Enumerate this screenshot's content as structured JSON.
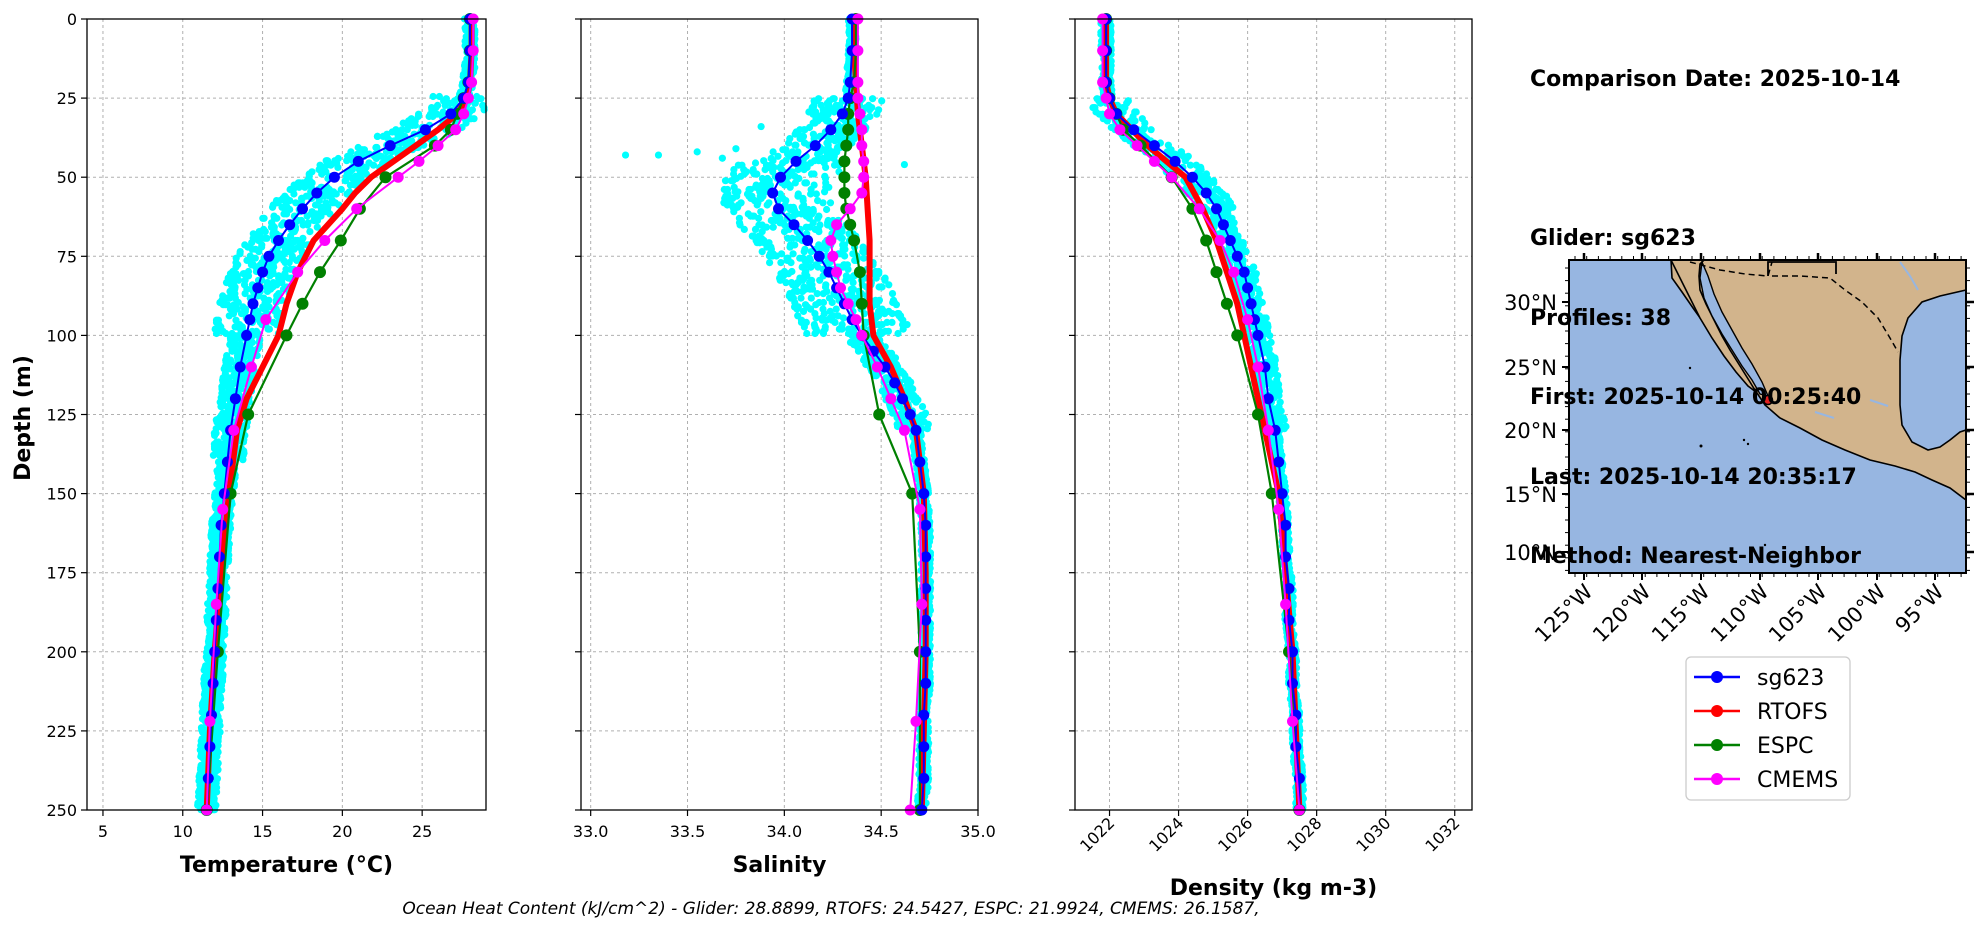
{
  "info": {
    "comparison_date": "Comparison Date: 2025-10-14",
    "glider": "Glider: sg623",
    "profiles": "Profiles: 38",
    "first": "First: 2025-10-14 00:25:40",
    "last": "Last: 2025-10-14 20:35:17",
    "method": "Method: Nearest-Neighbor"
  },
  "footer": "Ocean Heat Content (kJ/cm^2) - Glider: 28.8899,  RTOFS: 24.5427,  ESPC: 21.9924,  CMEMS: 26.1587,",
  "colors": {
    "sg623": "#0000ff",
    "RTOFS": "#ff0000",
    "ESPC": "#008000",
    "CMEMS": "#ff00ff",
    "glider_points": "#00ffff",
    "ocean": "#97b6e1",
    "land": "#d2b48c"
  },
  "chart_data": [
    {
      "type": "line",
      "xlabel": "Temperature (°C)",
      "ylabel": "Depth (m)",
      "xlim": [
        4,
        29
      ],
      "ylim": [
        250,
        0
      ],
      "xticks": [
        "5",
        "10",
        "15",
        "20",
        "25"
      ],
      "yticks": [
        "0",
        "25",
        "50",
        "75",
        "100",
        "125",
        "150",
        "175",
        "200",
        "225",
        "250"
      ],
      "grid": true,
      "series": [
        {
          "name": "sg623",
          "depth": [
            0,
            10,
            20,
            25,
            30,
            35,
            40,
            45,
            50,
            55,
            60,
            65,
            70,
            75,
            80,
            85,
            90,
            95,
            100,
            110,
            120,
            130,
            140,
            150,
            160,
            170,
            180,
            190,
            200,
            210,
            220,
            230,
            240,
            250
          ],
          "values": [
            28.0,
            28.0,
            27.9,
            27.6,
            26.8,
            25.2,
            23.0,
            21.0,
            19.5,
            18.4,
            17.5,
            16.7,
            16.0,
            15.4,
            15.0,
            14.7,
            14.4,
            14.2,
            14.0,
            13.6,
            13.3,
            13.0,
            12.8,
            12.6,
            12.4,
            12.3,
            12.2,
            12.1,
            12.0,
            11.9,
            11.8,
            11.7,
            11.6,
            11.5
          ]
        },
        {
          "name": "RTOFS",
          "depth": [
            0,
            10,
            20,
            25,
            30,
            35,
            40,
            45,
            50,
            55,
            60,
            65,
            70,
            80,
            90,
            100,
            110,
            120,
            130,
            150,
            175,
            200,
            225,
            250
          ],
          "values": [
            28.1,
            28.1,
            28.0,
            27.8,
            27.2,
            26.0,
            24.6,
            23.2,
            21.8,
            20.8,
            20.0,
            19.1,
            18.2,
            17.2,
            16.5,
            16.0,
            15.0,
            14.0,
            13.4,
            12.9,
            12.4,
            12.0,
            11.7,
            11.5
          ]
        },
        {
          "name": "ESPC",
          "depth": [
            0,
            10,
            20,
            25,
            30,
            35,
            40,
            50,
            60,
            70,
            80,
            90,
            100,
            125,
            150,
            200,
            250
          ],
          "values": [
            28.0,
            28.0,
            27.9,
            27.6,
            27.2,
            26.8,
            25.8,
            22.7,
            21.1,
            19.9,
            18.6,
            17.5,
            16.5,
            14.1,
            13.0,
            12.2,
            11.5
          ]
        },
        {
          "name": "CMEMS",
          "depth": [
            0,
            10,
            20,
            25,
            30,
            35,
            40,
            45,
            50,
            60,
            70,
            80,
            95,
            110,
            130,
            155,
            185,
            222,
            250
          ],
          "values": [
            28.2,
            28.2,
            28.1,
            27.9,
            27.6,
            27.1,
            26.0,
            24.8,
            23.5,
            20.9,
            18.9,
            17.2,
            15.2,
            14.3,
            13.2,
            12.5,
            12.1,
            11.7,
            11.5
          ]
        }
      ]
    },
    {
      "type": "line",
      "xlabel": "Salinity",
      "xlim": [
        32.95,
        35.0
      ],
      "ylim": [
        250,
        0
      ],
      "xticks": [
        "33.0",
        "33.5",
        "34.0",
        "34.5",
        "35.0"
      ],
      "grid": true,
      "series": [
        {
          "name": "sg623",
          "depth": [
            0,
            10,
            20,
            25,
            30,
            35,
            40,
            45,
            50,
            55,
            60,
            65,
            70,
            75,
            80,
            85,
            90,
            95,
            100,
            105,
            110,
            115,
            120,
            125,
            130,
            140,
            150,
            160,
            170,
            180,
            190,
            200,
            210,
            220,
            230,
            240,
            250
          ],
          "values": [
            34.35,
            34.35,
            34.34,
            34.33,
            34.3,
            34.24,
            34.16,
            34.06,
            33.98,
            33.94,
            33.97,
            34.05,
            34.12,
            34.18,
            34.23,
            34.27,
            34.31,
            34.35,
            34.4,
            34.46,
            34.52,
            34.57,
            34.61,
            34.65,
            34.68,
            34.7,
            34.72,
            34.73,
            34.73,
            34.73,
            34.73,
            34.73,
            34.73,
            34.72,
            34.72,
            34.72,
            34.71
          ]
        },
        {
          "name": "RTOFS",
          "depth": [
            0,
            10,
            20,
            30,
            40,
            50,
            60,
            70,
            80,
            90,
            100,
            110,
            120,
            130,
            150,
            175,
            200,
            225,
            250
          ],
          "values": [
            34.36,
            34.36,
            34.37,
            34.38,
            34.4,
            34.42,
            34.43,
            34.44,
            34.44,
            34.44,
            34.46,
            34.55,
            34.62,
            34.68,
            34.72,
            34.73,
            34.73,
            34.72,
            34.71
          ]
        },
        {
          "name": "ESPC",
          "depth": [
            0,
            10,
            20,
            25,
            30,
            35,
            40,
            45,
            50,
            55,
            60,
            65,
            70,
            80,
            90,
            100,
            125,
            150,
            200,
            250
          ],
          "values": [
            34.37,
            34.37,
            34.36,
            34.34,
            34.33,
            34.33,
            34.32,
            34.31,
            34.31,
            34.31,
            34.32,
            34.34,
            34.36,
            34.39,
            34.4,
            34.41,
            34.49,
            34.66,
            34.7,
            34.7
          ]
        },
        {
          "name": "CMEMS",
          "depth": [
            0,
            10,
            20,
            25,
            30,
            35,
            40,
            45,
            50,
            55,
            60,
            65,
            70,
            75,
            80,
            85,
            90,
            95,
            100,
            110,
            120,
            130,
            155,
            185,
            222,
            250
          ],
          "values": [
            34.38,
            34.38,
            34.38,
            34.38,
            34.39,
            34.4,
            34.4,
            34.41,
            34.41,
            34.4,
            34.34,
            34.27,
            34.24,
            34.25,
            34.27,
            34.29,
            34.33,
            34.37,
            34.4,
            34.48,
            34.55,
            34.62,
            34.7,
            34.71,
            34.68,
            34.65
          ]
        }
      ]
    },
    {
      "type": "line",
      "xlabel": "Density (kg m-3)",
      "xlim": [
        1021.0,
        1032.5
      ],
      "ylim": [
        250,
        0
      ],
      "xticks": [
        "1022",
        "1024",
        "1026",
        "1028",
        "1030",
        "1032"
      ],
      "grid": true,
      "series": [
        {
          "name": "sg623",
          "depth": [
            0,
            10,
            20,
            25,
            30,
            35,
            40,
            45,
            50,
            55,
            60,
            65,
            70,
            75,
            80,
            85,
            90,
            95,
            100,
            110,
            120,
            130,
            140,
            150,
            160,
            170,
            180,
            190,
            200,
            210,
            220,
            230,
            240,
            250
          ],
          "values": [
            1021.9,
            1021.9,
            1021.9,
            1022.0,
            1022.2,
            1022.7,
            1023.3,
            1023.9,
            1024.4,
            1024.8,
            1025.1,
            1025.3,
            1025.5,
            1025.7,
            1025.9,
            1026.0,
            1026.1,
            1026.2,
            1026.3,
            1026.5,
            1026.6,
            1026.8,
            1026.9,
            1027.0,
            1027.1,
            1027.1,
            1027.2,
            1027.2,
            1027.3,
            1027.3,
            1027.4,
            1027.4,
            1027.5,
            1027.5
          ]
        },
        {
          "name": "RTOFS",
          "depth": [
            0,
            10,
            20,
            25,
            30,
            40,
            50,
            60,
            70,
            80,
            90,
            100,
            110,
            120,
            130,
            150,
            175,
            200,
            225,
            250
          ],
          "values": [
            1021.9,
            1021.9,
            1021.9,
            1022.0,
            1022.2,
            1023.1,
            1024.2,
            1024.7,
            1025.1,
            1025.4,
            1025.7,
            1025.9,
            1026.1,
            1026.3,
            1026.5,
            1026.9,
            1027.1,
            1027.3,
            1027.4,
            1027.5
          ]
        },
        {
          "name": "ESPC",
          "depth": [
            0,
            10,
            20,
            25,
            30,
            35,
            40,
            50,
            60,
            70,
            80,
            90,
            100,
            125,
            150,
            200,
            250
          ],
          "values": [
            1021.9,
            1021.9,
            1021.9,
            1022.0,
            1022.2,
            1022.4,
            1022.9,
            1023.8,
            1024.4,
            1024.8,
            1025.1,
            1025.4,
            1025.7,
            1026.3,
            1026.7,
            1027.2,
            1027.5
          ]
        },
        {
          "name": "CMEMS",
          "depth": [
            0,
            10,
            20,
            25,
            30,
            35,
            40,
            45,
            50,
            60,
            70,
            80,
            95,
            110,
            130,
            155,
            185,
            222,
            250
          ],
          "values": [
            1021.8,
            1021.8,
            1021.8,
            1021.9,
            1022.0,
            1022.3,
            1022.8,
            1023.3,
            1023.8,
            1024.6,
            1025.2,
            1025.6,
            1026.0,
            1026.3,
            1026.6,
            1026.9,
            1027.1,
            1027.3,
            1027.5
          ]
        }
      ]
    }
  ],
  "map": {
    "lat_ticks": [
      "30°N",
      "25°N",
      "20°N",
      "15°N",
      "10°N"
    ],
    "lon_ticks": [
      "125°W",
      "120°W",
      "115°W",
      "110°W",
      "105°W",
      "100°W",
      "95°W"
    ],
    "glider_location": {
      "lon": -109.3,
      "lat": 22.3
    }
  },
  "legend": [
    {
      "label": "sg623",
      "color": "#0000ff"
    },
    {
      "label": "RTOFS",
      "color": "#ff0000"
    },
    {
      "label": "ESPC",
      "color": "#008000"
    },
    {
      "label": "CMEMS",
      "color": "#ff00ff"
    }
  ]
}
